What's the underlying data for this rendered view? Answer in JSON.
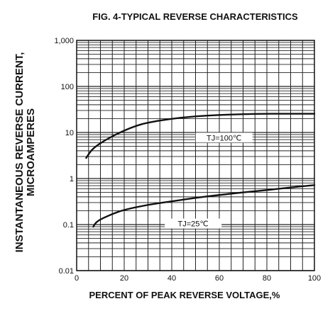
{
  "chart_data": {
    "type": "line",
    "title": "FIG. 4-TYPICAL REVERSE CHARACTERISTICS",
    "xlabel": "PERCENT OF PEAK REVERSE VOLTAGE,%",
    "ylabel_lines": [
      "INSTANTANEOUS REVERSE CURRENT,",
      "MICROAMPERES"
    ],
    "x_scale": "linear",
    "y_scale": "log",
    "xlim": [
      0,
      100
    ],
    "ylim": [
      0.01,
      1000
    ],
    "x_ticks": [
      "0",
      "20",
      "40",
      "60",
      "80",
      "100"
    ],
    "y_ticks": [
      "0.01",
      "0.1",
      "1",
      "10",
      "100",
      "1,000"
    ],
    "grid": true,
    "series": [
      {
        "name": "TJ=100℃",
        "x": [
          4,
          6,
          8,
          12,
          16,
          20,
          25,
          30,
          40,
          50,
          60,
          70,
          80,
          90,
          100
        ],
        "y": [
          2.8,
          4.0,
          5.0,
          6.8,
          8.8,
          11,
          14,
          16.5,
          20,
          22.5,
          24,
          25,
          25.5,
          25.5,
          25.5
        ]
      },
      {
        "name": "TJ=25℃",
        "x": [
          7,
          8,
          10,
          15,
          20,
          30,
          40,
          50,
          60,
          70,
          80,
          90,
          100
        ],
        "y": [
          0.09,
          0.11,
          0.13,
          0.17,
          0.21,
          0.27,
          0.32,
          0.38,
          0.44,
          0.5,
          0.56,
          0.64,
          0.72
        ]
      }
    ]
  }
}
